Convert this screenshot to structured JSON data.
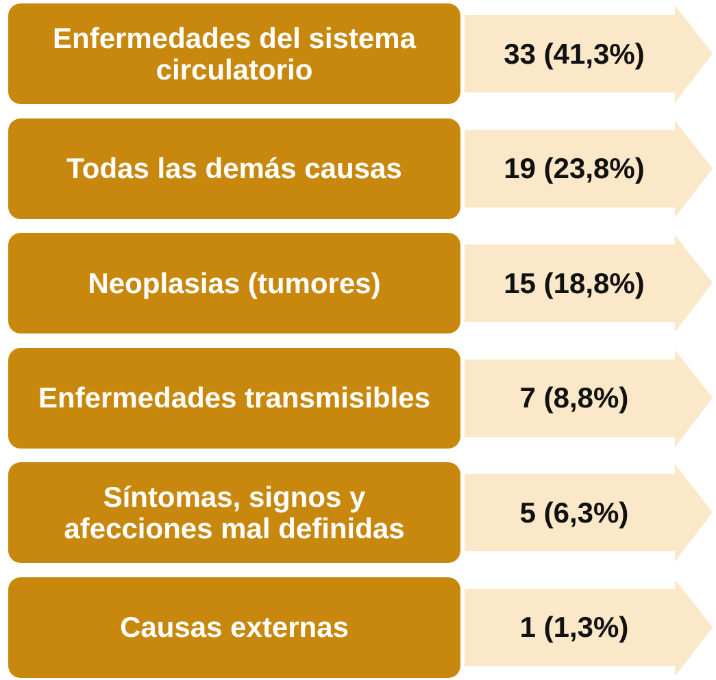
{
  "items": [
    {
      "label": "Enfermedades del sistema circulatorio",
      "value": "33 (41,3%)"
    },
    {
      "label": "Todas las demás causas",
      "value": "19 (23,8%)"
    },
    {
      "label": "Neoplasias (tumores)",
      "value": "15 (18,8%)"
    },
    {
      "label": "Enfermedades transmisibles",
      "value": "7 (8,8%)"
    },
    {
      "label": "Síntomas, signos y afecciones mal definidas",
      "value": "5 (6,3%)"
    },
    {
      "label": "Causas externas",
      "value": "1 (1,3%)"
    }
  ]
}
